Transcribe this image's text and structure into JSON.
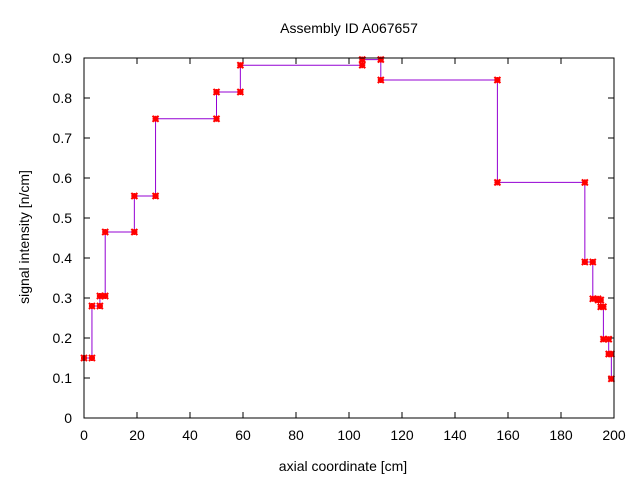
{
  "chart_data": {
    "type": "line",
    "title": "Assembly ID A067657",
    "xlabel": "axial coordinate [cm]",
    "ylabel": "signal intensity [n/cm]",
    "xlim": [
      0,
      200
    ],
    "ylim": [
      0,
      0.9
    ],
    "xticks": [
      "0",
      "20",
      "40",
      "60",
      "80",
      "100",
      "120",
      "140",
      "160",
      "180",
      "200"
    ],
    "yticks": [
      "0",
      "0.1",
      "0.2",
      "0.3",
      "0.4",
      "0.5",
      "0.6",
      "0.7",
      "0.8",
      "0.9"
    ],
    "grid": false,
    "legend": "none",
    "step": true,
    "colors": {
      "line": "#9400d3",
      "marker": "#ff0000"
    },
    "series": [
      {
        "x": [
          0,
          3,
          3,
          6,
          6,
          8,
          8,
          19,
          19,
          27,
          27,
          50,
          50,
          59,
          59,
          105,
          105,
          112,
          112,
          156,
          156,
          189,
          189,
          192,
          192,
          194,
          194,
          195,
          195,
          196,
          196,
          198,
          198,
          199,
          199
        ],
        "y": [
          0.15,
          0.15,
          0.28,
          0.28,
          0.305,
          0.305,
          0.465,
          0.465,
          0.555,
          0.555,
          0.748,
          0.748,
          0.815,
          0.815,
          0.882,
          0.882,
          0.896,
          0.896,
          0.845,
          0.845,
          0.589,
          0.589,
          0.39,
          0.39,
          0.298,
          0.298,
          0.295,
          0.295,
          0.278,
          0.278,
          0.197,
          0.197,
          0.16,
          0.16,
          0.098
        ]
      }
    ]
  }
}
